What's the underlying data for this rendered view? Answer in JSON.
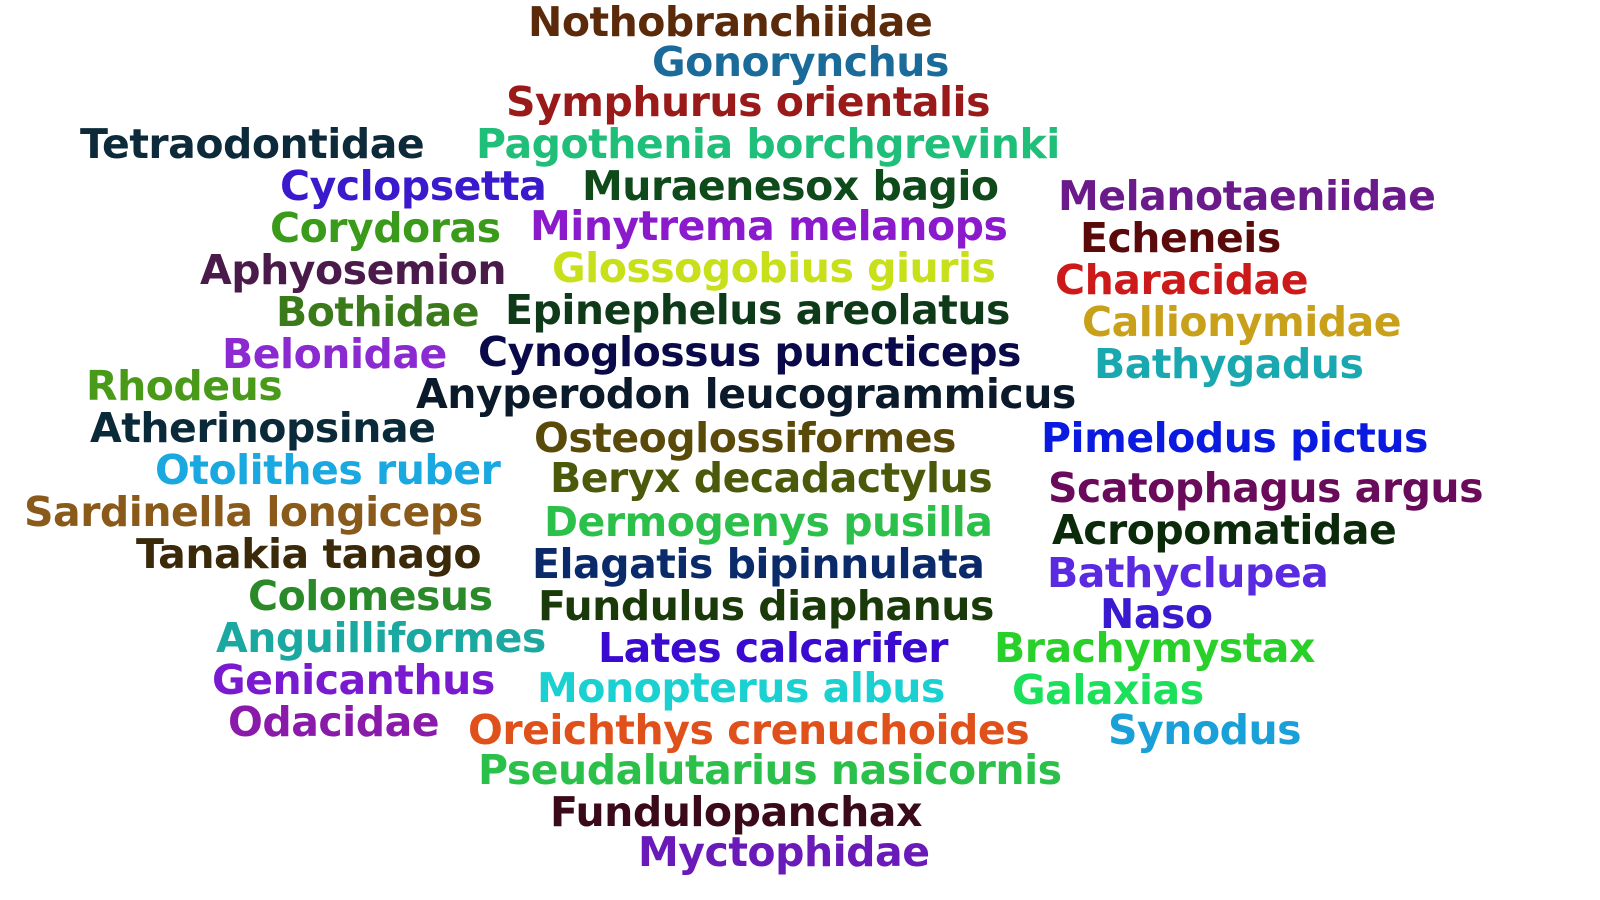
{
  "words": [
    {
      "text": "Nothobranchiidae",
      "color": "#5a2a0a"
    },
    {
      "text": "Gonorynchus",
      "color": "#1a6a9a"
    },
    {
      "text": "Symphurus orientalis",
      "color": "#9a1a1a"
    },
    {
      "text": "Tetraodontidae",
      "color": "#0d2a3a"
    },
    {
      "text": "Pagothenia borchgrevinki",
      "color": "#1fbf7a"
    },
    {
      "text": "Cyclopsetta",
      "color": "#3a1acc"
    },
    {
      "text": "Muraenesox bagio",
      "color": "#0f4a1a"
    },
    {
      "text": "Melanotaeniidae",
      "color": "#6a1a8a"
    },
    {
      "text": "Corydoras",
      "color": "#3a9a1a"
    },
    {
      "text": "Minytrema melanops",
      "color": "#8a1acc"
    },
    {
      "text": "Echeneis",
      "color": "#5a0a0a"
    },
    {
      "text": "Aphyosemion",
      "color": "#4a1a4a"
    },
    {
      "text": "Glossogobius giuris",
      "color": "#c8e01a"
    },
    {
      "text": "Characidae",
      "color": "#cc1a1a"
    },
    {
      "text": "Bothidae",
      "color": "#3a7a1a"
    },
    {
      "text": "Epinephelus areolatus",
      "color": "#0f3a1a"
    },
    {
      "text": "Callionymidae",
      "color": "#c8a01a"
    },
    {
      "text": "Belonidae",
      "color": "#8a2ad0"
    },
    {
      "text": "Cynoglossus puncticeps",
      "color": "#0a0a4a"
    },
    {
      "text": "Bathygadus",
      "color": "#1aa8b0"
    },
    {
      "text": "Rhodeus",
      "color": "#4a9a1a"
    },
    {
      "text": "Anyperodon leucogrammicus",
      "color": "#0a1a2a"
    },
    {
      "text": "Atherinopsinae",
      "color": "#0a2a3a"
    },
    {
      "text": "Osteoglossiformes",
      "color": "#5a4a0a"
    },
    {
      "text": "Pimelodus pictus",
      "color": "#0a1ae0"
    },
    {
      "text": "Otolithes ruber",
      "color": "#1aa8e0"
    },
    {
      "text": "Beryx decadactylus",
      "color": "#4a5a0a"
    },
    {
      "text": "Scatophagus argus",
      "color": "#6a0a5a"
    },
    {
      "text": "Sardinella longiceps",
      "color": "#8a5a1a"
    },
    {
      "text": "Dermogenys pusilla",
      "color": "#2ac04a"
    },
    {
      "text": "Acropomatidae",
      "color": "#0a2a0a"
    },
    {
      "text": "Tanakia tanago",
      "color": "#3a2a0a"
    },
    {
      "text": "Elagatis bipinnulata",
      "color": "#0a2a6a"
    },
    {
      "text": "Bathyclupea",
      "color": "#5a2ae0"
    },
    {
      "text": "Colomesus",
      "color": "#2a8a2a"
    },
    {
      "text": "Fundulus diaphanus",
      "color": "#1a3a0a"
    },
    {
      "text": "Naso",
      "color": "#3a1ad0"
    },
    {
      "text": "Anguilliformes",
      "color": "#1aa8a0"
    },
    {
      "text": "Lates calcarifer",
      "color": "#3a0ad0"
    },
    {
      "text": "Brachymystax",
      "color": "#2ad02a"
    },
    {
      "text": "Genicanthus",
      "color": "#7a1ad0"
    },
    {
      "text": "Monopterus albus",
      "color": "#1ad0d0"
    },
    {
      "text": "Galaxias",
      "color": "#1ae05a"
    },
    {
      "text": "Odacidae",
      "color": "#8a1aaa"
    },
    {
      "text": "Oreichthys crenuchoides",
      "color": "#e0501a"
    },
    {
      "text": "Synodus",
      "color": "#1aa0d8"
    },
    {
      "text": "Pseudalutarius nasicornis",
      "color": "#2ac04a"
    },
    {
      "text": "Fundulopanchax",
      "color": "#3a0a1a"
    },
    {
      "text": "Myctophidae",
      "color": "#6a1ab8"
    }
  ]
}
